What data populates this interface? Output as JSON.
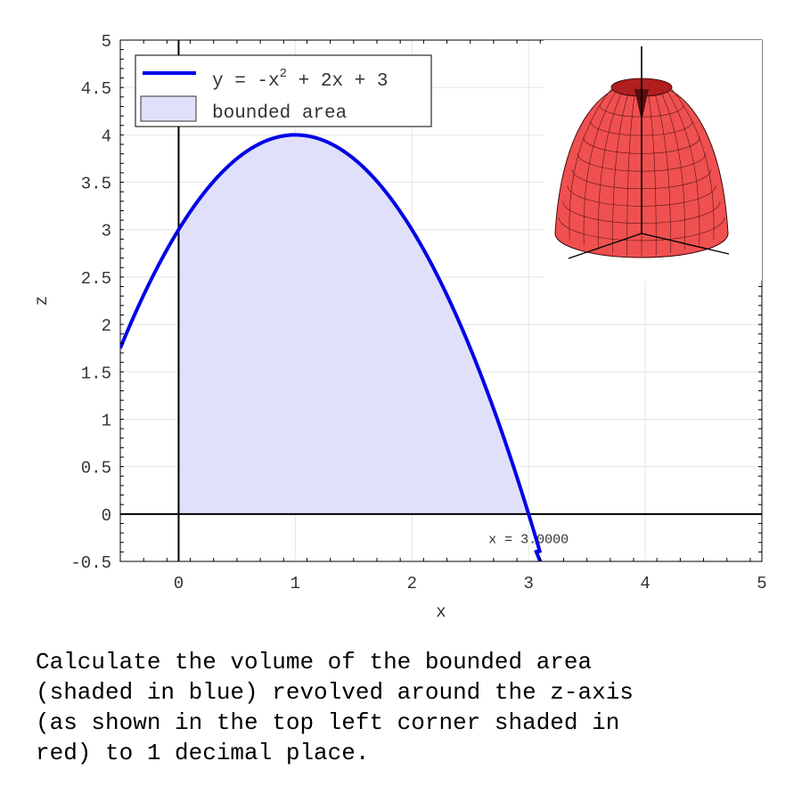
{
  "chart_data": {
    "type": "area",
    "xlabel": "x",
    "ylabel": "z",
    "xlim": [
      -0.5,
      5
    ],
    "ylim": [
      -0.5,
      5
    ],
    "x_ticks": [
      0,
      1,
      2,
      3,
      4,
      5
    ],
    "y_ticks": [
      -0.5,
      0,
      0.5,
      1,
      1.5,
      2,
      2.5,
      3,
      3.5,
      4,
      4.5,
      5
    ],
    "grid": true,
    "legend_position": "top-left",
    "legend": [
      {
        "label_main": "y = -x",
        "label_sup": "2",
        "label_rest": " + 2x + 3",
        "kind": "line",
        "color": "#0000e6"
      },
      {
        "label_main": "bounded area",
        "kind": "fill",
        "color": "#e0e0fa"
      }
    ],
    "curve": {
      "expression": "y = -x^2 + 2x + 3",
      "a": -1,
      "b": 2,
      "c": 3,
      "x_range": [
        -0.5,
        3.1
      ],
      "color": "#0000e6"
    },
    "shaded_region": {
      "x_from": 0,
      "x_to": 3,
      "color": "#e0e0fa"
    },
    "annotation": {
      "text": "x = 3.0000",
      "x": 3,
      "y": -0.25
    },
    "inset": {
      "description_icon": "paraboloid-of-revolution",
      "color": "#f05050",
      "position": "top-right"
    }
  },
  "question": {
    "lines": [
      "Calculate the volume of the bounded area",
      "(shaded in blue) revolved around the z-axis",
      "(as shown in the top left corner shaded in",
      "red) to 1 decimal place."
    ]
  }
}
